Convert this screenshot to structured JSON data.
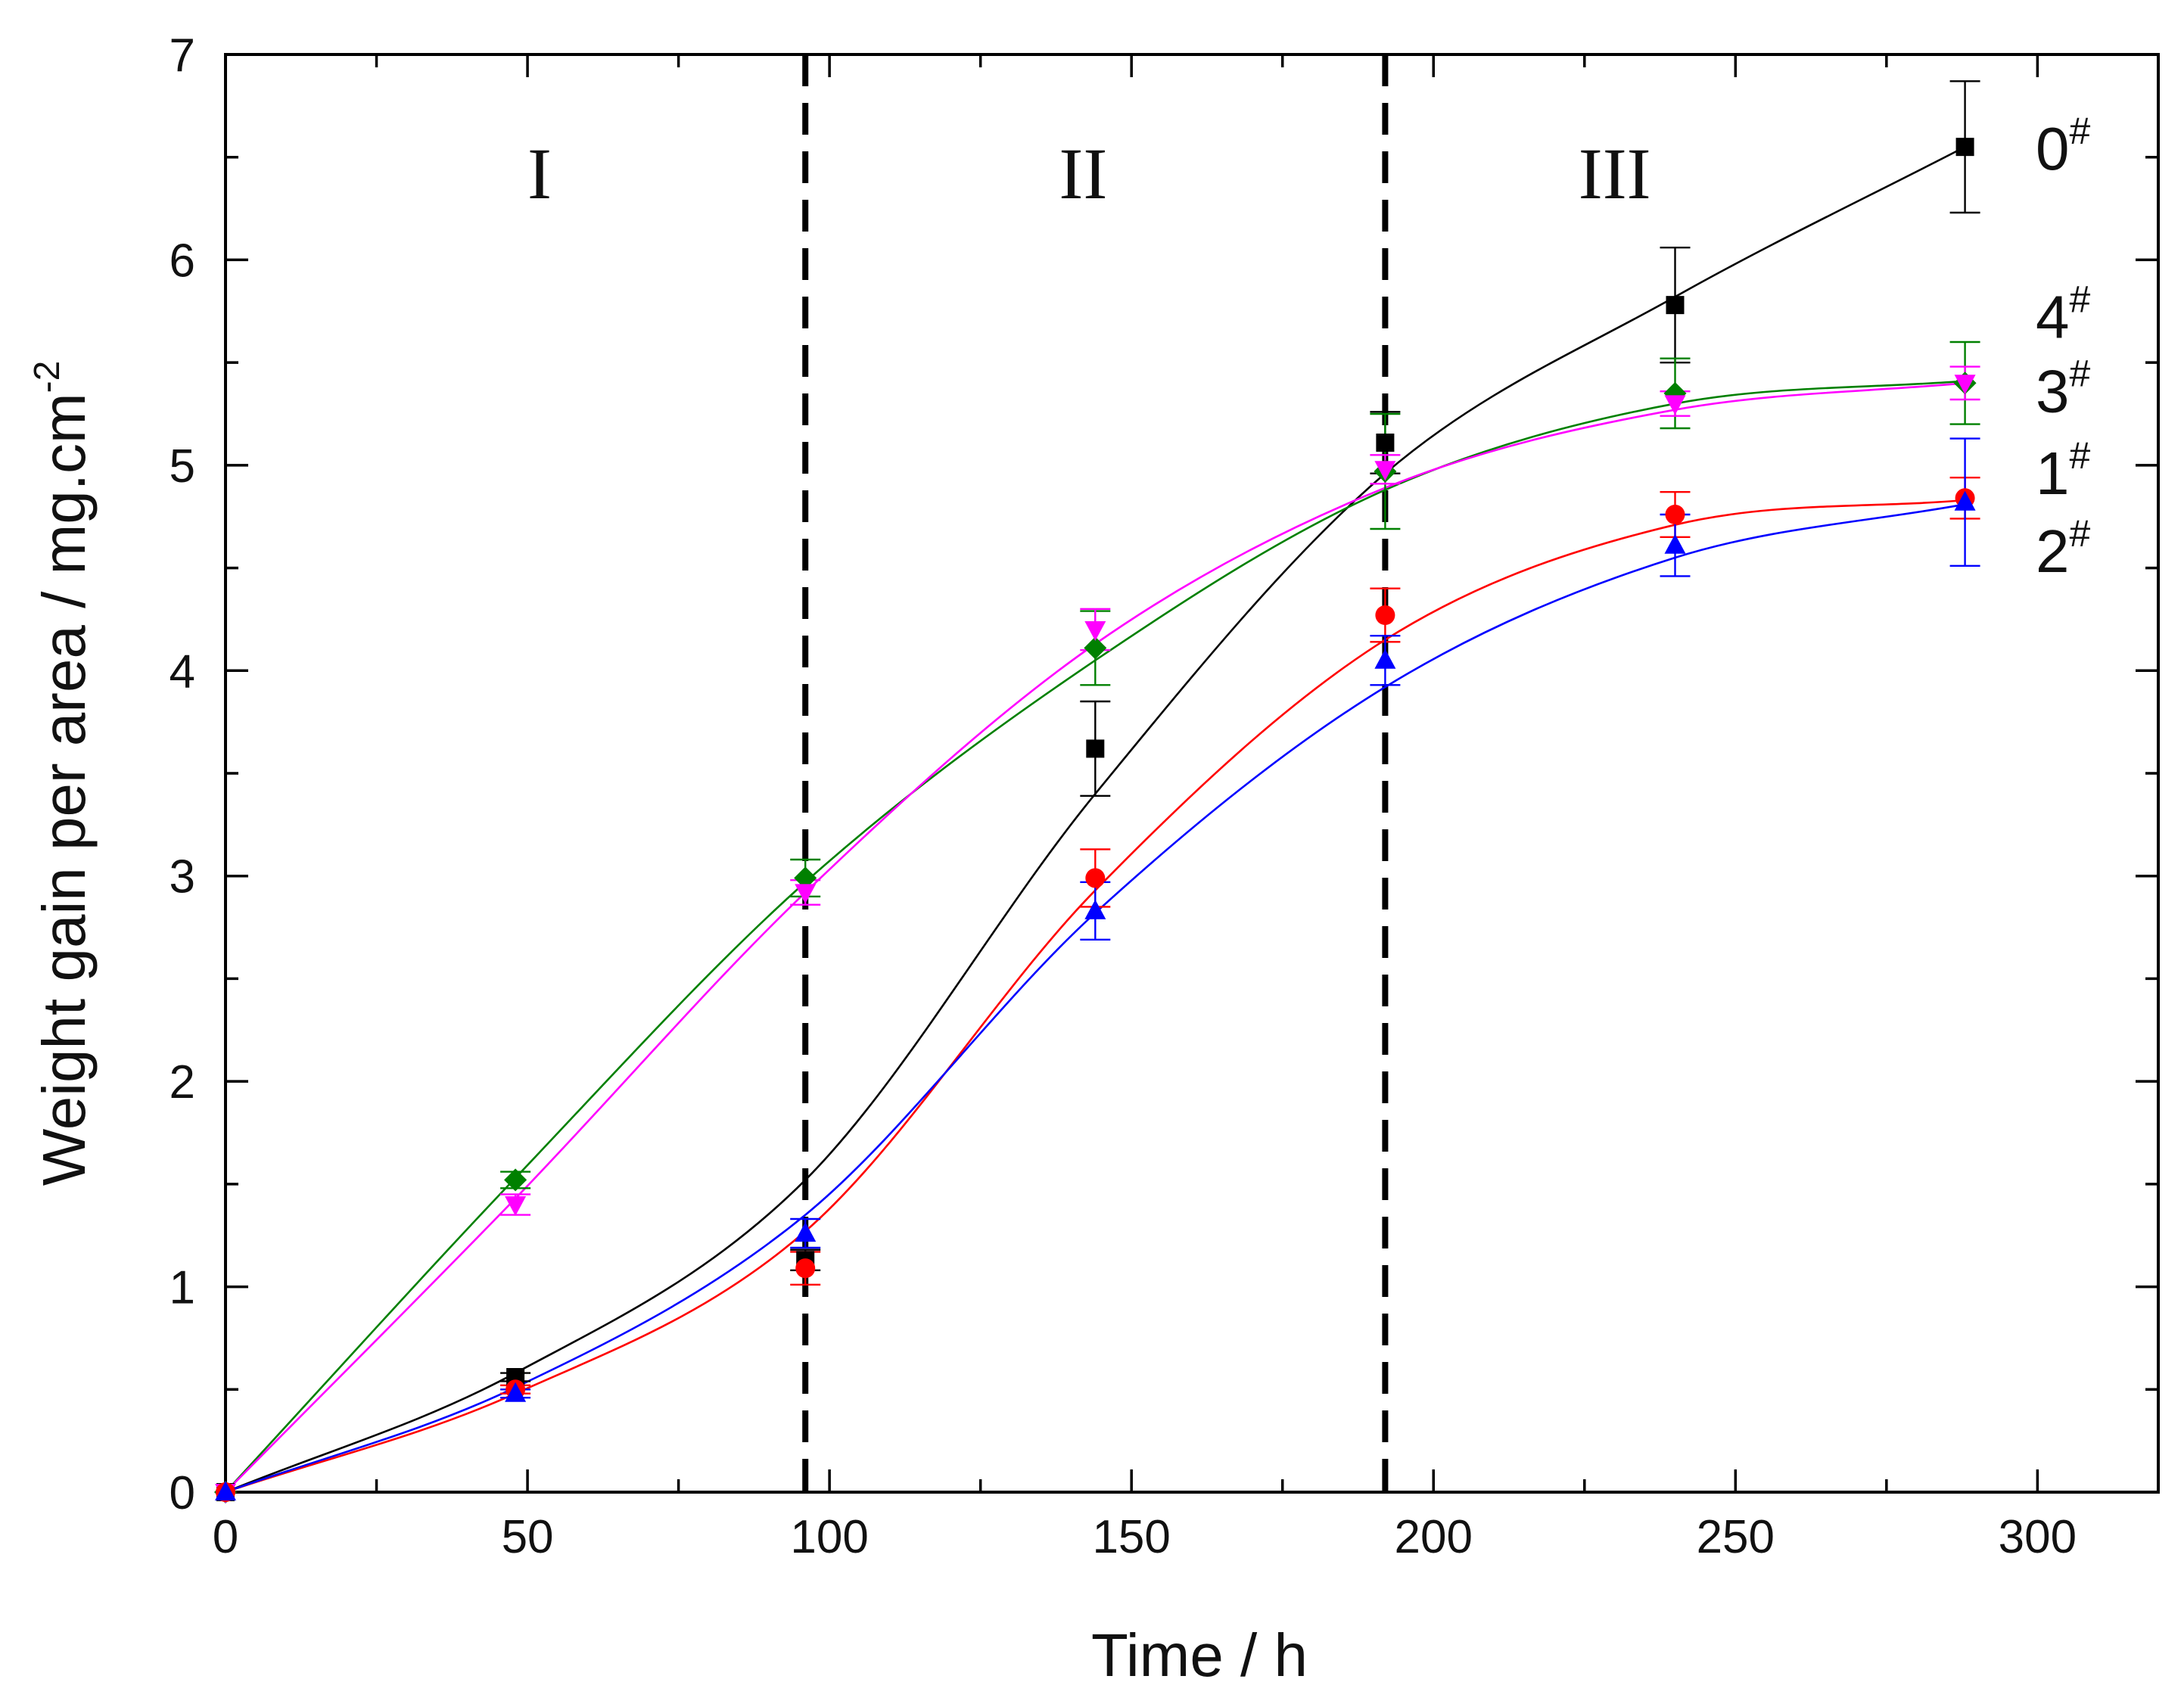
{
  "chart_data": {
    "type": "scatter",
    "title": "",
    "xlabel": "Time / h",
    "ylabel_main": "Weight gain per area / mg.cm",
    "ylabel_sup": "-2",
    "xlim": [
      0,
      320
    ],
    "ylim": [
      0,
      7
    ],
    "x_ticks": [
      0,
      50,
      100,
      150,
      200,
      250,
      300
    ],
    "x_tick_labels": [
      "0",
      "50",
      "100",
      "150",
      "200",
      "250",
      "300"
    ],
    "y_ticks": [
      0,
      1,
      2,
      3,
      4,
      5,
      6,
      7
    ],
    "y_tick_labels": [
      "0",
      "1",
      "2",
      "3",
      "4",
      "5",
      "6",
      "7"
    ],
    "grid": false,
    "dividers": [
      96,
      192
    ],
    "regions": [
      {
        "label": "I",
        "x": 52,
        "y": 6.3
      },
      {
        "label": "II",
        "x": 142,
        "y": 6.3
      },
      {
        "label": "III",
        "x": 230,
        "y": 6.3
      }
    ],
    "x": [
      0,
      48,
      96,
      144,
      192,
      240,
      288
    ],
    "series": [
      {
        "name": "0",
        "sup": "#",
        "color": "#000000",
        "marker": "square",
        "values": [
          0,
          0.56,
          1.13,
          3.62,
          5.11,
          5.78,
          6.55
        ],
        "errors": [
          0,
          0.02,
          0.05,
          0.23,
          0.15,
          0.28,
          0.32
        ],
        "fit": [
          0,
          0.58,
          1.52,
          3.4,
          4.96,
          5.82,
          6.55
        ],
        "label_y": 6.55
      },
      {
        "name": "4",
        "sup": "#",
        "color": "#008000",
        "marker": "diamond",
        "values": [
          0,
          1.52,
          2.99,
          4.11,
          4.97,
          5.35,
          5.4
        ],
        "errors": [
          0,
          0.04,
          0.09,
          0.18,
          0.28,
          0.17,
          0.2
        ],
        "fit": [
          0,
          1.53,
          2.97,
          4.05,
          4.88,
          5.3,
          5.41
        ],
        "label_y": 5.73
      },
      {
        "name": "3",
        "sup": "#",
        "color": "#ff00ff",
        "marker": "triangle-down",
        "values": [
          0,
          1.4,
          2.92,
          4.2,
          4.98,
          5.3,
          5.4
        ],
        "errors": [
          0,
          0.05,
          0.06,
          0.1,
          0.07,
          0.06,
          0.08
        ],
        "fit": [
          0,
          1.43,
          2.92,
          4.13,
          4.89,
          5.27,
          5.4
        ],
        "label_y": 5.37
      },
      {
        "name": "1",
        "sup": "#",
        "color": "#ff0000",
        "marker": "circle",
        "values": [
          0,
          0.5,
          1.09,
          2.99,
          4.27,
          4.76,
          4.84
        ],
        "errors": [
          0,
          0.02,
          0.08,
          0.14,
          0.13,
          0.11,
          0.1
        ],
        "fit": [
          0,
          0.48,
          1.27,
          2.93,
          4.15,
          4.71,
          4.83
        ],
        "label_y": 4.97
      },
      {
        "name": "2",
        "sup": "#",
        "color": "#0000ff",
        "marker": "triangle-up",
        "values": [
          0,
          0.48,
          1.26,
          2.83,
          4.05,
          4.61,
          4.82
        ],
        "errors": [
          0,
          0.02,
          0.07,
          0.14,
          0.12,
          0.15,
          0.31
        ],
        "fit": [
          0,
          0.51,
          1.35,
          2.82,
          3.92,
          4.55,
          4.81
        ],
        "label_y": 4.59
      }
    ]
  }
}
